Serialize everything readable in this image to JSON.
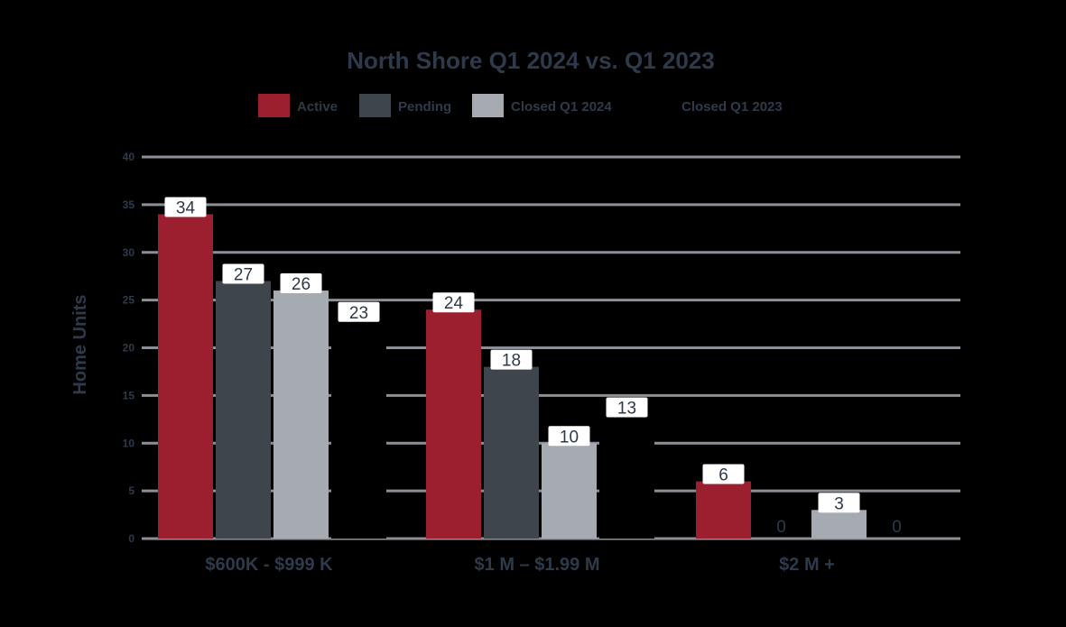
{
  "chart_data": {
    "type": "bar",
    "title": "North Shore Q1 2024 vs. Q1 2023",
    "ylabel": "Home Units",
    "xlabel": "",
    "ylim": [
      0,
      40
    ],
    "yticks": [
      0,
      5,
      10,
      15,
      20,
      25,
      30,
      35,
      40
    ],
    "grid": true,
    "legend_position": "top",
    "categories": [
      "$600K - $999 K",
      "$1 M – $1.99 M",
      "$2 M +"
    ],
    "series": [
      {
        "name": "Active",
        "color": "#9b1f2e",
        "values": [
          34,
          24,
          6
        ]
      },
      {
        "name": "Pending",
        "color": "#3f454d",
        "values": [
          27,
          18,
          0
        ]
      },
      {
        "name": "Closed Q1 2024",
        "color": "#a5abb1",
        "values": [
          26,
          10,
          3
        ]
      },
      {
        "name": "Closed Q1 2023",
        "color": "#000000",
        "values": [
          23,
          13,
          0
        ]
      }
    ]
  }
}
